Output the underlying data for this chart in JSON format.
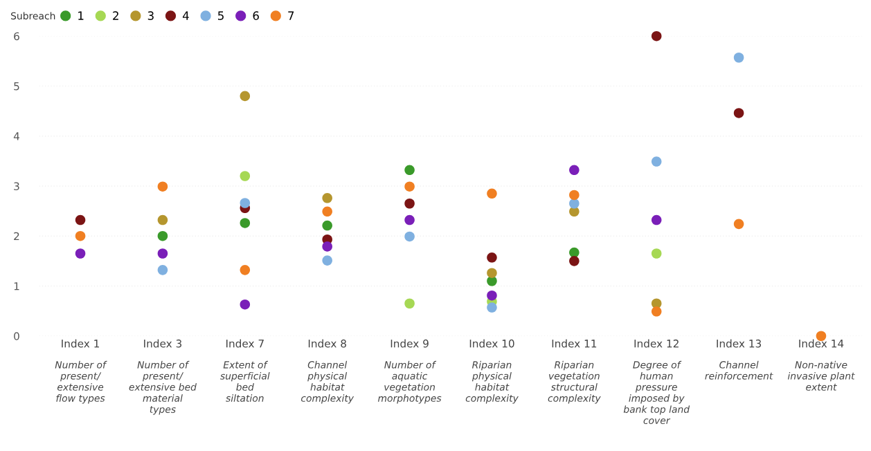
{
  "chart_data": {
    "type": "scatter",
    "categories": [
      "Index 1\nNumber of\npresent/\nextensive\nflow types",
      "Index 3\nNumber of\npresent/\nextensive bed\nmaterial\ntypes",
      "Index 7\nExtent of\nsuperficial\nbed\nsiltation",
      "Index 8\nChannel\nphysical\nhabitat\ncomplexity",
      "Index 9\nNumber of\naquatic\nvegetation\nmorphotypes",
      "Index 10\nRiparian\nphysical\nhabitat\ncomplexity",
      "Index 11\nRiparian\nvegetation\nstructural\ncomplexity",
      "Index 12\nDegree of\nhuman\npressure\nimposed by\nbank top land\ncover",
      "Index 13\nChannel\nreinforcement",
      "Index 14\nNon-native\ninvasive plant\nextent"
    ],
    "legend_title": "Subreach",
    "legend": "top left",
    "marker": "circle",
    "grid": "y",
    "ylim": [
      0,
      6
    ],
    "yticks": [
      0,
      1,
      2,
      3,
      4,
      5,
      6
    ],
    "series": [
      {
        "name": "1",
        "color": "#3a9a2a",
        "values": [
          null,
          2.0,
          2.26,
          2.21,
          3.32,
          1.1,
          1.67,
          null,
          null,
          null
        ]
      },
      {
        "name": "2",
        "color": "#a6d854",
        "values": [
          null,
          null,
          3.2,
          null,
          0.65,
          0.69,
          null,
          1.65,
          null,
          null
        ]
      },
      {
        "name": "3",
        "color": "#b5962e",
        "values": [
          null,
          2.32,
          4.8,
          2.76,
          null,
          1.26,
          2.49,
          0.65,
          null,
          null
        ]
      },
      {
        "name": "4",
        "color": "#7b1414",
        "values": [
          2.32,
          null,
          2.56,
          1.93,
          2.65,
          1.57,
          1.5,
          6.0,
          4.46,
          null
        ]
      },
      {
        "name": "5",
        "color": "#7fb0e0",
        "values": [
          null,
          1.32,
          2.66,
          1.51,
          1.99,
          0.57,
          2.65,
          3.49,
          5.57,
          null
        ]
      },
      {
        "name": "6",
        "color": "#7a1fb8",
        "values": [
          1.65,
          1.65,
          0.63,
          1.79,
          2.32,
          0.81,
          3.32,
          2.32,
          null,
          null
        ]
      },
      {
        "name": "7",
        "color": "#f07f22",
        "values": [
          2.0,
          2.99,
          1.32,
          2.49,
          2.99,
          2.85,
          2.82,
          0.49,
          2.24,
          0.0
        ]
      }
    ]
  }
}
